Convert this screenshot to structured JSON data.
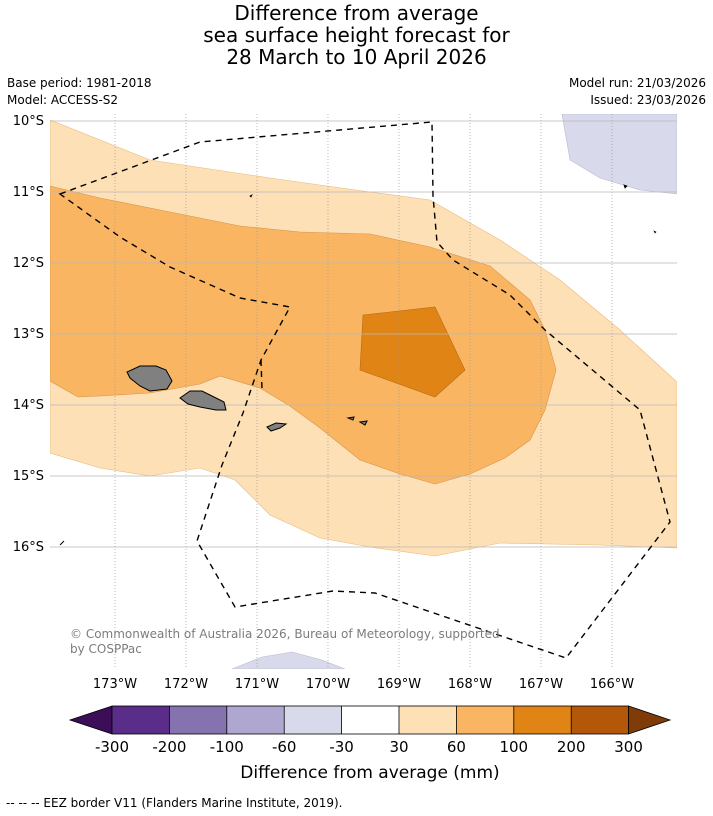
{
  "title": {
    "line1": "Difference from average",
    "line2": "sea surface height forecast for",
    "line3": "28 March to 10 April 2026"
  },
  "meta": {
    "base_period": "Base period: 1981-2018",
    "model": "Model: ACCESS-S2",
    "model_run": "Model run: 21/03/2026",
    "issued": "Issued: 23/03/2026"
  },
  "map": {
    "lat_labels": [
      "10°S",
      "11°S",
      "12°S",
      "13°S",
      "14°S",
      "15°S",
      "16°S"
    ],
    "lon_labels": [
      "173°W",
      "172°W",
      "171°W",
      "170°W",
      "169°W",
      "168°W",
      "167°W",
      "166°W"
    ],
    "copyright": "© Commonwealth of Australia 2026, Bureau of Meteorology, supported",
    "copyright_line2": "by COSPPac"
  },
  "colorbar": {
    "tick_labels": [
      "-300",
      "-200",
      "-100",
      "-60",
      "-30",
      "30",
      "60",
      "100",
      "200",
      "300"
    ],
    "colors": [
      "#5a2d8a",
      "#8473ae",
      "#b0a7d0",
      "#d8d9ea",
      "#ffffff",
      "#fee0b6",
      "#f9b561",
      "#e08416",
      "#b35808"
    ],
    "low_extend_color": "#3b0e57",
    "high_extend_color": "#7f3b08",
    "label": "Difference from average (mm)"
  },
  "legend": {
    "eez": "--  --  -- EEZ border V11 (Flanders Marine Institute, 2019)."
  }
}
